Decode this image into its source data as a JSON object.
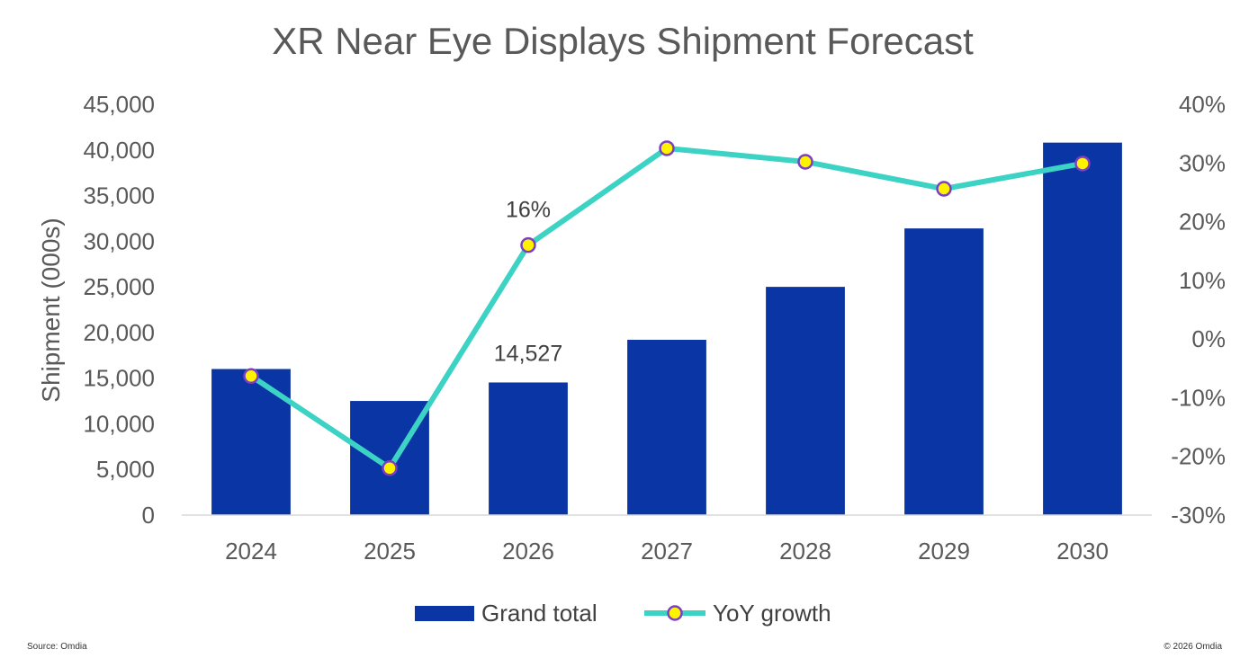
{
  "chart_data": {
    "type": "bar",
    "title": "XR Near Eye Displays Shipment Forecast",
    "xlabel": "",
    "ylabel": "Shipment (000s)",
    "categories": [
      "2024",
      "2025",
      "2026",
      "2027",
      "2028",
      "2029",
      "2030"
    ],
    "series": [
      {
        "name": "Grand total",
        "type": "bar",
        "axis": "left",
        "color": "#0A35A5",
        "values": [
          16000,
          12500,
          14527,
          19200,
          25000,
          31400,
          40800
        ]
      },
      {
        "name": "YoY growth",
        "type": "line",
        "axis": "right",
        "color": "#3CD3C4",
        "marker_fill": "#FFF200",
        "marker_stroke": "#7B3FC4",
        "unit": "%",
        "values": [
          -6.3,
          -22,
          16,
          32.5,
          30.2,
          25.6,
          29.9
        ]
      }
    ],
    "ylim": [
      0,
      45000
    ],
    "y_ticks": [
      "0",
      "5,000",
      "10,000",
      "15,000",
      "20,000",
      "25,000",
      "30,000",
      "35,000",
      "40,000",
      "45,000"
    ],
    "y2lim": [
      -30,
      40
    ],
    "y2_ticks": [
      "-30%",
      "-20%",
      "-10%",
      "0%",
      "10%",
      "20%",
      "30%",
      "40%"
    ],
    "annotations": [
      {
        "series": "Grand total",
        "category": "2026",
        "text": "14,527"
      },
      {
        "series": "YoY growth",
        "category": "2026",
        "text": "16%"
      }
    ],
    "grid": false,
    "legend_position": "bottom"
  },
  "footer": {
    "source": "Source: Omdia",
    "copyright": "© 2026 Omdia"
  }
}
